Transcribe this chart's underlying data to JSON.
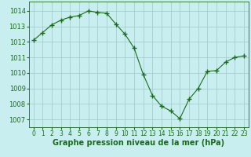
{
  "x": [
    0,
    1,
    2,
    3,
    4,
    5,
    6,
    7,
    8,
    9,
    10,
    11,
    12,
    13,
    14,
    15,
    16,
    17,
    18,
    19,
    20,
    21,
    22,
    23
  ],
  "y": [
    1012.1,
    1012.6,
    1013.1,
    1013.4,
    1013.6,
    1013.7,
    1014.0,
    1013.9,
    1013.85,
    1013.15,
    1012.5,
    1011.6,
    1009.9,
    1008.55,
    1007.85,
    1007.55,
    1007.05,
    1008.3,
    1009.0,
    1010.1,
    1010.15,
    1010.7,
    1011.0,
    1011.1
  ],
  "line_color": "#1a6b1a",
  "marker": "+",
  "marker_size": 4,
  "bg_color": "#c8eef0",
  "grid_color": "#a0c8c8",
  "xlabel": "Graphe pression niveau de la mer (hPa)",
  "xlabel_fontsize": 7,
  "ylabel_ticks": [
    1007,
    1008,
    1009,
    1010,
    1011,
    1012,
    1013,
    1014
  ],
  "xticks": [
    0,
    1,
    2,
    3,
    4,
    5,
    6,
    7,
    8,
    9,
    10,
    11,
    12,
    13,
    14,
    15,
    16,
    17,
    18,
    19,
    20,
    21,
    22,
    23
  ],
  "ylim": [
    1006.5,
    1014.6
  ],
  "xlim": [
    -0.5,
    23.5
  ],
  "tick_color": "#1a6b1a",
  "ytick_fontsize": 6,
  "xtick_fontsize": 5.5
}
